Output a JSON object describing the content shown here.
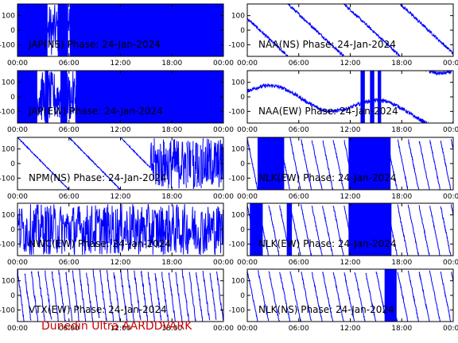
{
  "footer": "Dunedin Ultra AARDDVARK",
  "colors": {
    "trace": "#0000ff",
    "axis": "#000000",
    "footer": "#cc0000"
  },
  "chart_data": [
    {
      "type": "line",
      "title": "JAP(NS) Phase: 24-Jan-2024",
      "x_ticks": [
        "00:00",
        "06:00",
        "12:00",
        "18:00",
        "00:00"
      ],
      "y_ticks": [
        "100",
        "0",
        "-100"
      ],
      "ylim": [
        -180,
        180
      ],
      "xlim_hours": [
        0,
        24
      ],
      "solid_ranges_hours": [
        [
          0,
          3.5
        ],
        [
          4.7,
          5.9
        ],
        [
          6.1,
          24
        ]
      ],
      "series_pattern": "noise"
    },
    {
      "type": "line",
      "title": "NAA(NS) Phase: 24-Jan-2024",
      "x_ticks": [
        "00:00",
        "06:00",
        "12:00",
        "18:00",
        "00:00"
      ],
      "y_ticks": [
        "100",
        "0",
        "-100"
      ],
      "ylim": [
        -180,
        180
      ],
      "xlim_hours": [
        0,
        24
      ],
      "solid_ranges_hours": [],
      "series_pattern": "drift"
    },
    {
      "type": "line",
      "title": "JAP(EW) Phase: 24-Jan-2024",
      "x_ticks": [
        "00:00",
        "06:00",
        "12:00",
        "18:00",
        "00:00"
      ],
      "y_ticks": [
        "100",
        "0",
        "-100"
      ],
      "ylim": [
        -180,
        180
      ],
      "xlim_hours": [
        0,
        24
      ],
      "solid_ranges_hours": [
        [
          0,
          2.3
        ],
        [
          3.2,
          3.6
        ],
        [
          5.0,
          5.8
        ],
        [
          6.8,
          24
        ]
      ],
      "series_pattern": "noise"
    },
    {
      "type": "line",
      "title": "NAA(EW) Phase: 24-Jan-2024",
      "x_ticks": [
        "00:00",
        "06:00",
        "12:00",
        "18:00",
        "00:00"
      ],
      "y_ticks": [
        "100",
        "0",
        "-100"
      ],
      "ylim": [
        -180,
        180
      ],
      "xlim_hours": [
        0,
        24
      ],
      "solid_ranges_hours": [
        [
          13.2,
          13.7
        ],
        [
          14.3,
          14.8
        ],
        [
          15.2,
          15.6
        ]
      ],
      "series_pattern": "drift2"
    },
    {
      "type": "line",
      "title": "NPM(NS) Phase: 24-Jan-2024",
      "x_ticks": [
        "00:00",
        "06:00",
        "12:00",
        "18:00",
        "00:00"
      ],
      "y_ticks": [
        "100",
        "0",
        "-100"
      ],
      "ylim": [
        -180,
        180
      ],
      "xlim_hours": [
        0,
        24
      ],
      "solid_ranges_hours": [],
      "series_pattern": "npm"
    },
    {
      "type": "line",
      "title": "NLK(EW) Phase: 24-Jan-2024",
      "x_ticks": [
        "00:00",
        "06:00",
        "12:00",
        "18:00",
        "00:00"
      ],
      "y_ticks": [
        "100",
        "0",
        "-100"
      ],
      "ylim": [
        -180,
        180
      ],
      "xlim_hours": [
        0,
        24
      ],
      "solid_ranges_hours": [
        [
          1.2,
          4.3
        ],
        [
          11.8,
          16.7
        ]
      ],
      "series_pattern": "sawtooth"
    },
    {
      "type": "line",
      "title": "NWC(EW) Phase: 24-Jan-2024",
      "x_ticks": [
        "00:00",
        "06:00",
        "12:00",
        "18:00",
        "00:00"
      ],
      "y_ticks": [
        "100",
        "0",
        "-100"
      ],
      "ylim": [
        -180,
        180
      ],
      "xlim_hours": [
        0,
        24
      ],
      "solid_ranges_hours": [],
      "series_pattern": "fastnoise"
    },
    {
      "type": "line",
      "title": "NLK(EW) Phase: 24-Jan-2024",
      "x_ticks": [
        "00:00",
        "06:00",
        "12:00",
        "18:00",
        "00:00"
      ],
      "y_ticks": [
        "100",
        "0",
        "-100"
      ],
      "ylim": [
        -180,
        180
      ],
      "xlim_hours": [
        0,
        24
      ],
      "solid_ranges_hours": [
        [
          0.3,
          1.8
        ],
        [
          4.6,
          5.2
        ],
        [
          11.8,
          16.8
        ]
      ],
      "series_pattern": "sawtooth"
    },
    {
      "type": "line",
      "title": "VTX(EW) Phase: 24-Jan-2024",
      "x_ticks": [
        "00:00",
        "06:00",
        "12:00",
        "18:00",
        "00:00"
      ],
      "y_ticks": [
        "100",
        "0",
        "-100"
      ],
      "ylim": [
        -180,
        180
      ],
      "xlim_hours": [
        0,
        24
      ],
      "solid_ranges_hours": [],
      "series_pattern": "vtx"
    },
    {
      "type": "line",
      "title": "NLK(NS) Phase: 24-Jan-2024",
      "x_ticks": [
        "00:00",
        "06:00",
        "12:00",
        "18:00",
        "00:00"
      ],
      "y_ticks": [
        "100",
        "0",
        "-100"
      ],
      "ylim": [
        -180,
        180
      ],
      "xlim_hours": [
        0,
        24
      ],
      "solid_ranges_hours": [
        [
          16.0,
          17.4
        ]
      ],
      "series_pattern": "sawtooth"
    }
  ]
}
